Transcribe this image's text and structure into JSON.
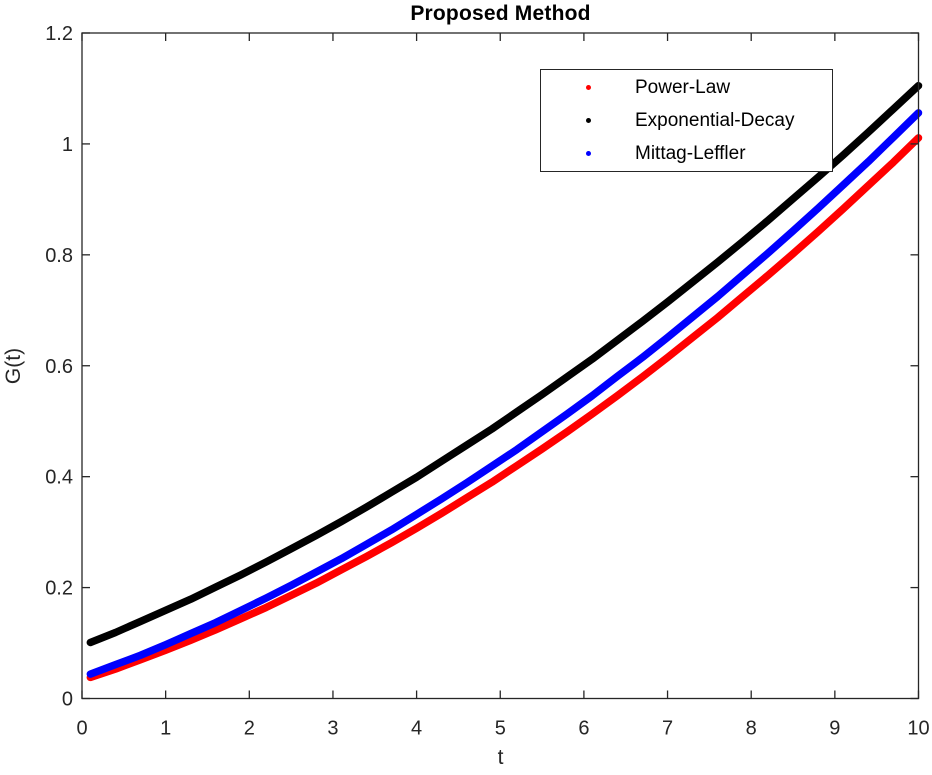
{
  "chart_data": {
    "type": "line",
    "title": "Proposed Method",
    "xlabel": "t",
    "ylabel": "G(t)",
    "xlim": [
      0,
      10
    ],
    "ylim": [
      0,
      1.2
    ],
    "x_ticks": [
      0,
      1,
      2,
      3,
      4,
      5,
      6,
      7,
      8,
      9,
      10
    ],
    "x_tick_labels": [
      "0",
      "1",
      "2",
      "3",
      "4",
      "5",
      "6",
      "7",
      "8",
      "9",
      "10"
    ],
    "y_ticks": [
      0,
      0.2,
      0.4,
      0.6,
      0.8,
      1,
      1.2
    ],
    "y_tick_labels": [
      "0",
      "0.2",
      "0.4",
      "0.6",
      "0.8",
      "1",
      "1.2"
    ],
    "grid": false,
    "box": true,
    "tick_direction": "in",
    "legend_position": "upper-right-inside",
    "axis_color": "#262626",
    "line_width": 7.5,
    "x": [
      0.1,
      0.4,
      0.7,
      1.0,
      1.3,
      1.6,
      1.9,
      2.2,
      2.5,
      2.8,
      3.1,
      3.4,
      3.7,
      4.0,
      4.3,
      4.6,
      4.9,
      5.2,
      5.5,
      5.8,
      6.1,
      6.4,
      6.7,
      7.0,
      7.3,
      7.6,
      7.9,
      8.2,
      8.5,
      8.8,
      9.1,
      9.4,
      9.7,
      10.0
    ],
    "series": [
      {
        "name": "Power-Law",
        "color": "#ff0000",
        "marker": "point",
        "values": [
          0.038,
          0.053,
          0.07,
          0.087,
          0.105,
          0.124,
          0.144,
          0.164,
          0.186,
          0.208,
          0.232,
          0.256,
          0.281,
          0.307,
          0.334,
          0.362,
          0.39,
          0.42,
          0.45,
          0.481,
          0.513,
          0.546,
          0.58,
          0.615,
          0.651,
          0.687,
          0.725,
          0.763,
          0.802,
          0.842,
          0.883,
          0.925,
          0.967,
          1.011
        ]
      },
      {
        "name": "Exponential-Decay",
        "color": "#000000",
        "marker": "point",
        "values": [
          0.101,
          0.119,
          0.139,
          0.159,
          0.179,
          0.201,
          0.223,
          0.246,
          0.27,
          0.294,
          0.319,
          0.345,
          0.372,
          0.399,
          0.428,
          0.457,
          0.486,
          0.517,
          0.548,
          0.58,
          0.612,
          0.646,
          0.68,
          0.715,
          0.751,
          0.787,
          0.824,
          0.862,
          0.901,
          0.94,
          0.98,
          1.021,
          1.063,
          1.105
        ]
      },
      {
        "name": "Mittag-Leffler",
        "color": "#0000ff",
        "marker": "point",
        "values": [
          0.044,
          0.061,
          0.078,
          0.097,
          0.117,
          0.137,
          0.159,
          0.181,
          0.204,
          0.228,
          0.252,
          0.278,
          0.304,
          0.332,
          0.36,
          0.389,
          0.419,
          0.449,
          0.481,
          0.513,
          0.546,
          0.581,
          0.615,
          0.651,
          0.688,
          0.725,
          0.764,
          0.803,
          0.843,
          0.884,
          0.926,
          0.968,
          1.012,
          1.056
        ]
      }
    ]
  }
}
